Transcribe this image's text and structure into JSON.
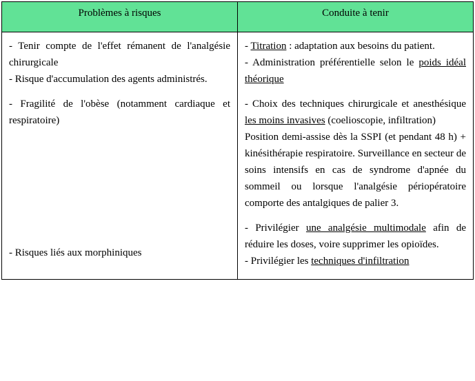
{
  "header": {
    "left": "Problèmes à risques",
    "right": "Conduite à tenir",
    "background": "#61e296"
  },
  "left": {
    "p1": "- Tenir compte de l'effet rémanent de l'analgésie chirurgicale",
    "p2": "- Risque d'accumulation des agents administrés.",
    "p3": "- Fragilité de l'obèse (notamment cardiaque et respiratoire)",
    "p4": "- Risques liés aux morphiniques"
  },
  "right": {
    "r1a": "- ",
    "r1u": "Titration",
    "r1b": " : adaptation aux besoins du patient.",
    "r2a": "- Administration préférentielle selon le ",
    "r2u": "poids idéal théorique",
    "r3a": "- Choix des techniques chirurgicale et anesthésique ",
    "r3u": "les moins invasives",
    "r3b": " (coelioscopie, infiltration)",
    "r4": "Position demi-assise dès la SSPI (et pendant 48 h) + kinésithérapie respiratoire. Surveillance en secteur de soins intensifs en cas de syndrome d'apnée du sommeil ou lorsque l'analgésie périopératoire comporte des antalgiques de palier 3.",
    "r5a": "- Privilégier ",
    "r5u": "une analgésie multimodale",
    "r5b": " afin de réduire les doses, voire supprimer les opioïdes.",
    "r6a": "- Privilégier les ",
    "r6u": "techniques d'infiltration"
  },
  "colwidths": {
    "left_pct": 50,
    "right_pct": 50
  }
}
